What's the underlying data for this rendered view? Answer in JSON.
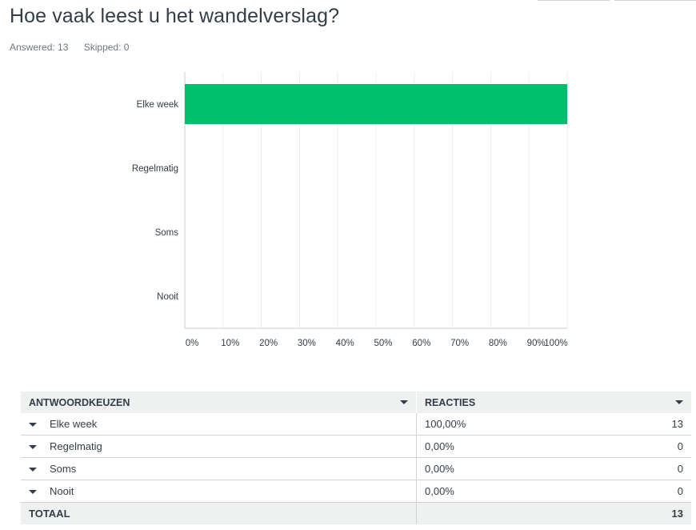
{
  "question": {
    "title": "Hoe vaak leest u het wandelverslag?"
  },
  "stats": {
    "answered": "Answered: 13",
    "skipped": "Skipped: 0"
  },
  "chart_data": {
    "type": "bar",
    "orientation": "horizontal",
    "categories": [
      "Elke week",
      "Regelmatig",
      "Soms",
      "Nooit"
    ],
    "values": [
      100,
      0,
      0,
      0
    ],
    "xlim": [
      0,
      100
    ],
    "xticks": [
      "0%",
      "10%",
      "20%",
      "30%",
      "40%",
      "50%",
      "60%",
      "70%",
      "80%",
      "90%",
      "100%"
    ],
    "grid": true,
    "bar_color": "#00bf6f"
  },
  "table": {
    "headers": {
      "answer": "ANTWOORDKEUZEN",
      "responses": "REACTIES"
    },
    "rows": [
      {
        "label": "Elke week",
        "percent": "100,00%",
        "count": "13"
      },
      {
        "label": "Regelmatig",
        "percent": "0,00%",
        "count": "0"
      },
      {
        "label": "Soms",
        "percent": "0,00%",
        "count": "0"
      },
      {
        "label": "Nooit",
        "percent": "0,00%",
        "count": "0"
      }
    ],
    "total": {
      "label": "TOTAAL",
      "count": "13"
    }
  }
}
